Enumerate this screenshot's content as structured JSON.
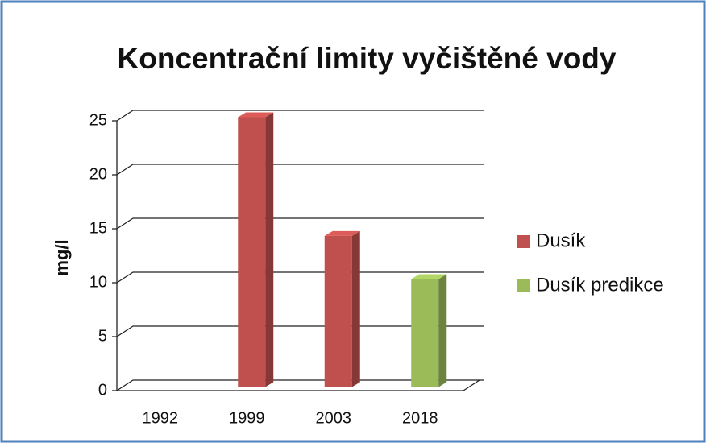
{
  "chart_data": {
    "type": "bar3d",
    "title": "Koncentrační limity vyčištěné vody",
    "y_label": "mg/l",
    "categories": [
      "1992",
      "1999",
      "2003",
      "2018"
    ],
    "series": [
      {
        "name": "Dusík",
        "color": "#c0504d",
        "values": [
          null,
          25,
          14,
          null
        ]
      },
      {
        "name": "Dusík predikce",
        "color": "#9bbb59",
        "values": [
          null,
          null,
          null,
          10
        ]
      }
    ],
    "ylim": [
      0,
      25
    ],
    "yticks": [
      0,
      5,
      10,
      15,
      20,
      25
    ],
    "grid": true,
    "legend": "right"
  }
}
